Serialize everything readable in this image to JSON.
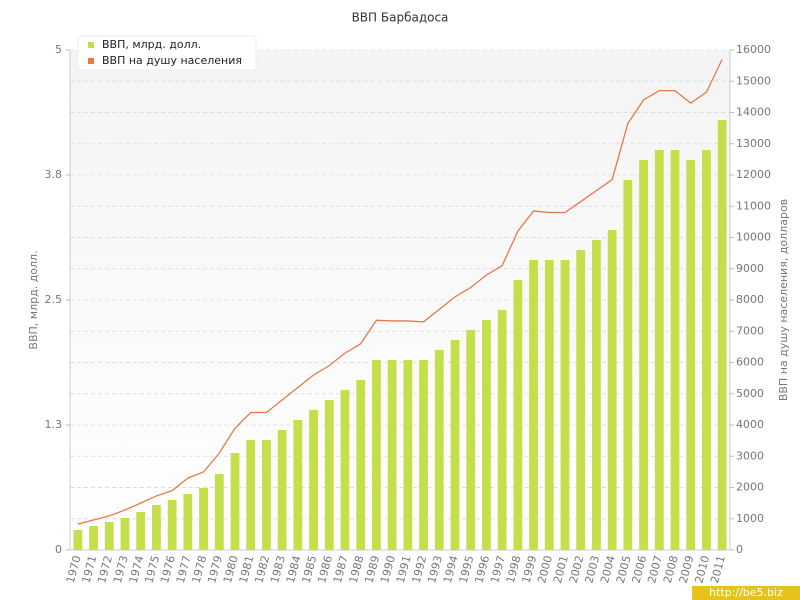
{
  "chart_data": {
    "type": "bar",
    "title": "ВВП Барбадоса",
    "y_label": "ВВП, млрд. долл.",
    "y2_label": "ВВП на душу населения, долларов",
    "watermark": "http://be5.biz",
    "legend": "top-left",
    "grid": true,
    "categories": [
      "1970",
      "1971",
      "1972",
      "1973",
      "1974",
      "1975",
      "1976",
      "1977",
      "1978",
      "1979",
      "1980",
      "1981",
      "1982",
      "1983",
      "1984",
      "1985",
      "1986",
      "1987",
      "1988",
      "1989",
      "1990",
      "1991",
      "1992",
      "1993",
      "1994",
      "1995",
      "1996",
      "1997",
      "1998",
      "1999",
      "2000",
      "2001",
      "2002",
      "2003",
      "2004",
      "2005",
      "2006",
      "2007",
      "2008",
      "2009",
      "2010",
      "2011"
    ],
    "ylim": [
      0,
      5
    ],
    "yticks": [
      0,
      {
        "value": 1.25,
        "label": "1.3"
      },
      2.5,
      {
        "value": 3.75,
        "label": "3.8"
      },
      5
    ],
    "y2lim": [
      0,
      16000
    ],
    "y2ticks": [
      0,
      1000,
      2000,
      3000,
      4000,
      5000,
      6000,
      7000,
      8000,
      9000,
      10000,
      11000,
      12000,
      13000,
      14000,
      15000,
      16000
    ],
    "series": [
      {
        "name": "ВВП, млрд. долл.",
        "type": "bar",
        "color": "#c3df4c",
        "values": [
          0.2,
          0.24,
          0.28,
          0.32,
          0.38,
          0.45,
          0.5,
          0.56,
          0.62,
          0.76,
          0.97,
          1.1,
          1.1,
          1.2,
          1.3,
          1.4,
          1.5,
          1.6,
          1.7,
          1.9,
          1.9,
          1.9,
          1.9,
          2.0,
          2.1,
          2.2,
          2.3,
          2.4,
          2.7,
          2.9,
          2.9,
          2.9,
          3.0,
          3.1,
          3.2,
          3.7,
          3.9,
          4.0,
          4.0,
          3.9,
          4.0,
          4.3
        ]
      },
      {
        "name": "ВВП на душу населения",
        "type": "line",
        "color": "#e8784c",
        "axis": "y2",
        "values": [
          830,
          960,
          1090,
          1280,
          1500,
          1730,
          1900,
          2300,
          2500,
          3100,
          3900,
          4400,
          4400,
          4800,
          5200,
          5600,
          5900,
          6300,
          6600,
          7350,
          7330,
          7330,
          7300,
          7700,
          8100,
          8400,
          8800,
          9100,
          10200,
          10850,
          10800,
          10800,
          11150,
          11500,
          11850,
          13650,
          14400,
          14700,
          14700,
          14300,
          14650,
          15700
        ]
      }
    ]
  }
}
